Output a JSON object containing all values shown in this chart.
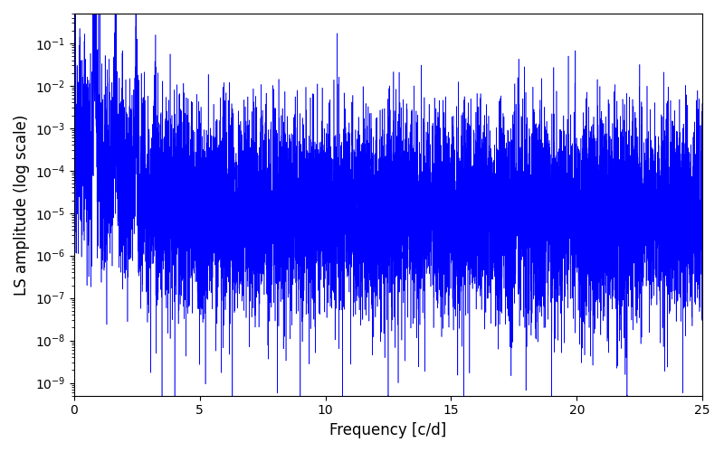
{
  "xlabel": "Frequency [c/d]",
  "ylabel": "LS amplitude (log scale)",
  "xlim": [
    0,
    25
  ],
  "ylim": [
    5e-10,
    0.5
  ],
  "line_color": "blue",
  "line_width": 0.4,
  "figsize": [
    8.0,
    5.0
  ],
  "dpi": 100,
  "freq_max": 25.0,
  "n_points": 10000,
  "peak_freq": 0.82,
  "peak_amp": 0.28,
  "noise_floor": 1e-05,
  "seed": 12345
}
